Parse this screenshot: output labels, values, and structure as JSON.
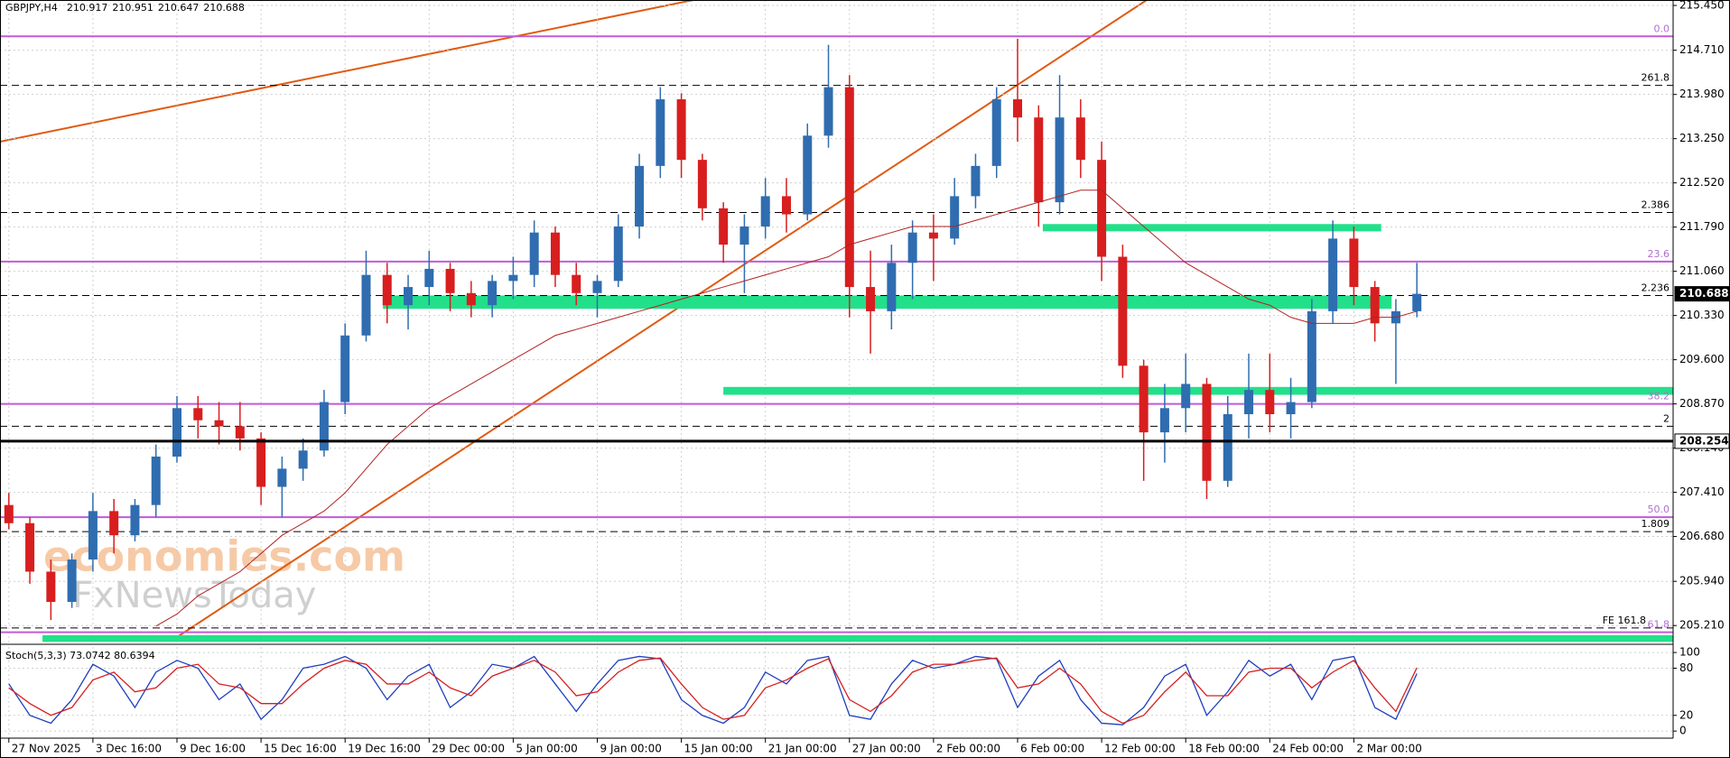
{
  "chart_data": [
    {
      "type": "candlestick",
      "title": "GBPJPY,H4",
      "header_values": [
        210.917,
        210.951,
        210.647,
        210.688
      ],
      "categories": [
        "27 Nov 2025",
        null,
        null,
        null,
        "3 Dec 16:00",
        null,
        null,
        null,
        "9 Dec 16:00",
        null,
        null,
        null,
        "15 Dec 16:00",
        null,
        null,
        null,
        "19 Dec 16:00",
        null,
        null,
        null,
        "29 Dec 00:00",
        null,
        null,
        null,
        "5 Jan 00:00",
        null,
        null,
        null,
        "9 Jan 00:00",
        null,
        null,
        null,
        "15 Jan 00:00",
        null,
        null,
        null,
        "21 Jan 00:00",
        null,
        null,
        null,
        "27 Jan 00:00",
        null,
        null,
        null,
        "2 Feb 00:00",
        null,
        null,
        null,
        "6 Feb 00:00",
        null,
        null,
        null,
        "12 Feb 00:00",
        null,
        null,
        null,
        "18 Feb 00:00",
        null,
        null,
        null,
        "24 Feb 00:00",
        null,
        null,
        null,
        "2 Mar 00:00",
        null,
        null,
        null
      ],
      "open": [
        207.2,
        206.9,
        206.1,
        205.6,
        206.3,
        207.1,
        206.7,
        207.2,
        208.0,
        208.8,
        208.6,
        208.5,
        208.3,
        207.5,
        207.8,
        208.1,
        208.9,
        210.0,
        211.0,
        210.5,
        210.8,
        211.1,
        210.7,
        210.5,
        210.9,
        211.0,
        211.7,
        211.0,
        210.7,
        210.9,
        211.8,
        212.8,
        213.9,
        212.9,
        212.1,
        211.5,
        211.8,
        212.3,
        212.0,
        213.3,
        214.1,
        210.8,
        210.4,
        211.2,
        211.7,
        211.6,
        212.3,
        212.8,
        213.9,
        213.6,
        212.2,
        213.6,
        212.9,
        211.3,
        209.5,
        208.4,
        208.8,
        209.2,
        207.6,
        208.7,
        209.1,
        208.7,
        208.9,
        210.4,
        211.6,
        210.8,
        210.2,
        210.4
      ],
      "high": [
        207.4,
        207.0,
        206.3,
        206.4,
        207.4,
        207.3,
        207.3,
        208.2,
        209.0,
        209.0,
        208.9,
        208.9,
        208.4,
        208.0,
        208.3,
        209.1,
        210.2,
        211.4,
        211.2,
        211.0,
        211.4,
        211.2,
        210.9,
        211.0,
        211.3,
        211.9,
        211.8,
        211.2,
        211.0,
        212.0,
        213.0,
        214.1,
        214.0,
        213.0,
        212.2,
        212.0,
        212.6,
        212.6,
        213.5,
        214.8,
        214.3,
        211.4,
        211.5,
        211.9,
        212.0,
        212.6,
        213.0,
        214.1,
        214.9,
        213.8,
        214.3,
        213.9,
        213.2,
        211.5,
        209.6,
        209.2,
        209.7,
        209.3,
        209.0,
        209.7,
        209.7,
        209.3,
        210.6,
        211.9,
        211.8,
        210.9,
        210.6,
        211.2
      ],
      "low": [
        206.8,
        205.9,
        205.3,
        205.5,
        206.1,
        206.4,
        206.6,
        207.0,
        207.9,
        208.3,
        208.2,
        208.1,
        207.2,
        207.0,
        207.6,
        208.0,
        208.7,
        209.9,
        210.2,
        210.1,
        210.5,
        210.4,
        210.3,
        210.3,
        210.6,
        210.8,
        210.8,
        210.5,
        210.3,
        210.8,
        211.6,
        212.6,
        212.6,
        211.9,
        211.2,
        210.7,
        211.6,
        211.7,
        211.9,
        213.1,
        210.3,
        209.7,
        210.1,
        210.6,
        210.9,
        211.5,
        212.1,
        212.6,
        213.2,
        211.8,
        212.0,
        212.6,
        210.9,
        209.3,
        207.6,
        207.9,
        208.4,
        207.3,
        207.5,
        208.3,
        208.4,
        208.3,
        208.8,
        210.2,
        210.5,
        209.9,
        209.2,
        210.3
      ],
      "close": [
        206.9,
        206.1,
        205.6,
        206.3,
        207.1,
        206.7,
        207.2,
        208.0,
        208.8,
        208.6,
        208.5,
        208.3,
        207.5,
        207.8,
        208.1,
        208.9,
        210.0,
        211.0,
        210.5,
        210.8,
        211.1,
        210.7,
        210.5,
        210.9,
        211.0,
        211.7,
        211.0,
        210.7,
        210.9,
        211.8,
        212.8,
        213.9,
        212.9,
        212.1,
        211.5,
        211.8,
        212.3,
        212.0,
        213.3,
        214.1,
        210.8,
        210.4,
        211.2,
        211.7,
        211.6,
        212.3,
        212.8,
        213.9,
        213.6,
        212.2,
        213.6,
        212.9,
        211.3,
        209.5,
        208.4,
        208.8,
        209.2,
        207.6,
        208.7,
        209.1,
        208.7,
        208.9,
        210.4,
        211.6,
        210.8,
        210.2,
        210.4,
        210.688
      ],
      "up_color": "#2f6db0",
      "down_color": "#d81e1e",
      "ma": {
        "color": "#b22222",
        "values": [
          null,
          null,
          null,
          null,
          null,
          null,
          null,
          205.2,
          205.4,
          205.7,
          205.9,
          206.1,
          206.4,
          206.7,
          206.9,
          207.1,
          207.4,
          207.8,
          208.2,
          208.5,
          208.8,
          209.0,
          209.2,
          209.4,
          209.6,
          209.8,
          210.0,
          210.1,
          210.2,
          210.3,
          210.4,
          210.5,
          210.6,
          210.7,
          210.8,
          210.9,
          211.0,
          211.1,
          211.2,
          211.3,
          211.5,
          211.6,
          211.7,
          211.8,
          211.8,
          211.8,
          211.9,
          212.0,
          212.1,
          212.2,
          212.3,
          212.4,
          212.4,
          212.1,
          211.8,
          211.5,
          211.2,
          211.0,
          210.8,
          210.6,
          210.5,
          210.3,
          210.2,
          210.2,
          210.2,
          210.3,
          210.3,
          210.4
        ]
      },
      "ylim": [
        204.9,
        215.54
      ],
      "yticks": [
        {
          "value": 215.45,
          "label": "215.450"
        },
        {
          "value": 214.71,
          "label": "214.710"
        },
        {
          "value": 213.98,
          "label": "213.980"
        },
        {
          "value": 213.25,
          "label": "213.250"
        },
        {
          "value": 212.52,
          "label": "212.520"
        },
        {
          "value": 211.79,
          "label": "211.790"
        },
        {
          "value": 211.06,
          "label": "211.060"
        },
        {
          "value": 210.33,
          "label": "210.330"
        },
        {
          "value": 209.6,
          "label": "209.600"
        },
        {
          "value": 208.87,
          "label": "208.870"
        },
        {
          "value": 208.14,
          "label": "208.140"
        },
        {
          "value": 207.41,
          "label": "207.410"
        },
        {
          "value": 206.68,
          "label": "206.680"
        },
        {
          "value": 205.94,
          "label": "205.940"
        },
        {
          "value": 205.21,
          "label": "205.210"
        }
      ],
      "grid": true,
      "levels": [
        {
          "value": 214.94,
          "label": "0.0",
          "color": "#c05bd8",
          "style": "solid"
        },
        {
          "value": 214.13,
          "label": "261.8",
          "color": "#000000",
          "style": "dashed"
        },
        {
          "value": 212.03,
          "label": "2.386",
          "color": "#000000",
          "style": "dashed"
        },
        {
          "value": 211.22,
          "label": "23.6",
          "color": "#c05bd8",
          "style": "solid"
        },
        {
          "value": 210.66,
          "label": "2.236",
          "color": "#000000",
          "style": "dashed"
        },
        {
          "value": 208.87,
          "label": "38.2",
          "color": "#c05bd8",
          "style": "solid"
        },
        {
          "value": 208.5,
          "label": "2",
          "color": "#000000",
          "style": "dashed"
        },
        {
          "value": 207.0,
          "label": "50.0",
          "color": "#c05bd8",
          "style": "solid"
        },
        {
          "value": 206.76,
          "label": "1.809",
          "color": "#000000",
          "style": "dashed"
        },
        {
          "value": 205.17,
          "label": "FE 161.8",
          "color": "#000000",
          "style": "dashed"
        },
        {
          "value": 205.1,
          "label": "61.8",
          "color": "#c05bd8",
          "style": "solid"
        }
      ],
      "zone_color": "#22e08a",
      "zones": [
        {
          "from": 210.44,
          "to": 210.66,
          "x0": 17.8,
          "x1": 65.8
        },
        {
          "from": 211.72,
          "to": 211.84,
          "x0": 49.2,
          "x1": 65.3
        },
        {
          "from": 209.02,
          "to": 209.15,
          "x0": 34
        },
        {
          "from": 204.94,
          "to": 205.05,
          "x0": 1.6
        }
      ],
      "price_tags": [
        {
          "value": 210.688,
          "style": "current"
        },
        {
          "value": 208.254,
          "style": "line"
        }
      ],
      "watermark": [
        "economies.com",
        "FxNewsToday"
      ]
    },
    {
      "type": "stochastic",
      "title": "Stoch(5,3,3) 73.0742 80.6394",
      "series": [
        {
          "color": "#1f3fbf",
          "values": [
            60,
            20,
            10,
            40,
            85,
            70,
            30,
            75,
            90,
            80,
            40,
            60,
            15,
            40,
            80,
            85,
            95,
            80,
            40,
            70,
            85,
            30,
            50,
            85,
            80,
            95,
            60,
            25,
            60,
            90,
            95,
            92,
            40,
            20,
            10,
            30,
            75,
            60,
            90,
            95,
            20,
            15,
            60,
            90,
            80,
            85,
            95,
            92,
            30,
            70,
            90,
            40,
            10,
            8,
            30,
            70,
            85,
            20,
            50,
            90,
            70,
            85,
            40,
            90,
            95,
            30,
            15,
            73.0742
          ]
        },
        {
          "color": "#d62020",
          "values": [
            55,
            35,
            20,
            30,
            65,
            75,
            50,
            55,
            80,
            85,
            60,
            55,
            35,
            35,
            60,
            80,
            90,
            85,
            60,
            60,
            75,
            55,
            45,
            70,
            80,
            90,
            75,
            45,
            50,
            75,
            90,
            93,
            60,
            30,
            15,
            20,
            55,
            65,
            80,
            92,
            40,
            25,
            45,
            75,
            85,
            85,
            90,
            93,
            55,
            60,
            80,
            60,
            25,
            10,
            20,
            50,
            75,
            45,
            45,
            75,
            80,
            80,
            55,
            75,
            90,
            55,
            25,
            80.6394
          ]
        }
      ],
      "ylim": [
        -9,
        107
      ],
      "yticks": [
        0,
        20,
        80,
        100
      ]
    }
  ]
}
